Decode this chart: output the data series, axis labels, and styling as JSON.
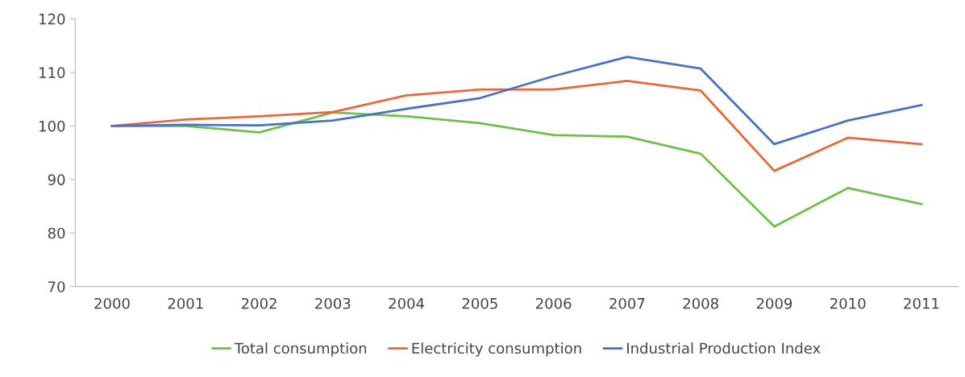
{
  "chart_data": {
    "type": "line",
    "categories": [
      "2000",
      "2001",
      "2002",
      "2003",
      "2004",
      "2005",
      "2006",
      "2007",
      "2008",
      "2009",
      "2010",
      "2011"
    ],
    "series": [
      {
        "name": "Total consumption",
        "color": "#70bf4a",
        "values": [
          100,
          100,
          98.8,
          102.5,
          101.8,
          100.5,
          98.3,
          98,
          94.8,
          81.2,
          88.4,
          85.4
        ]
      },
      {
        "name": "Electricity consumption",
        "color": "#e8683a",
        "values": [
          100,
          101.2,
          101.8,
          102.6,
          105.7,
          106.8,
          106.8,
          108.4,
          106.6,
          91.6,
          97.8,
          96.6
        ]
      },
      {
        "name": "Industrial Production Index",
        "color": "#4a72c4",
        "values": [
          100,
          100.2,
          100.1,
          101,
          103.2,
          105.2,
          109.3,
          112.9,
          110.7,
          96.6,
          101,
          103.9
        ]
      }
    ],
    "ylim": [
      70,
      120
    ],
    "yticks": [
      70,
      80,
      90,
      100,
      110,
      120
    ],
    "grid": false,
    "legend": "bottom",
    "marker": "none",
    "line_style": "solid"
  }
}
